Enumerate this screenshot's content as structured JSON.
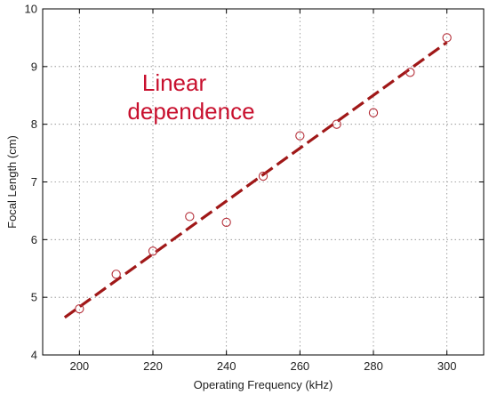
{
  "chart_data": {
    "type": "scatter",
    "xlabel": "Operating Frequency (kHz)",
    "ylabel": "Focal Length (cm)",
    "xlim": [
      190,
      310
    ],
    "ylim": [
      4,
      10
    ],
    "xticks": [
      200,
      220,
      240,
      260,
      280,
      300
    ],
    "yticks": [
      4,
      5,
      6,
      7,
      8,
      9,
      10
    ],
    "grid": true,
    "points": {
      "x": [
        200,
        210,
        220,
        230,
        240,
        250,
        260,
        270,
        280,
        290,
        300
      ],
      "y": [
        4.8,
        5.4,
        5.8,
        6.4,
        6.3,
        7.1,
        7.8,
        8.0,
        8.2,
        8.9,
        9.5
      ]
    },
    "fit_line": {
      "x": [
        196,
        300
      ],
      "y": [
        4.65,
        9.42
      ]
    },
    "annotation": [
      "Linear",
      "dependence"
    ],
    "colors": {
      "marker": "#b5303a",
      "fit": "#a01818",
      "annotation": "#c8102e"
    }
  }
}
